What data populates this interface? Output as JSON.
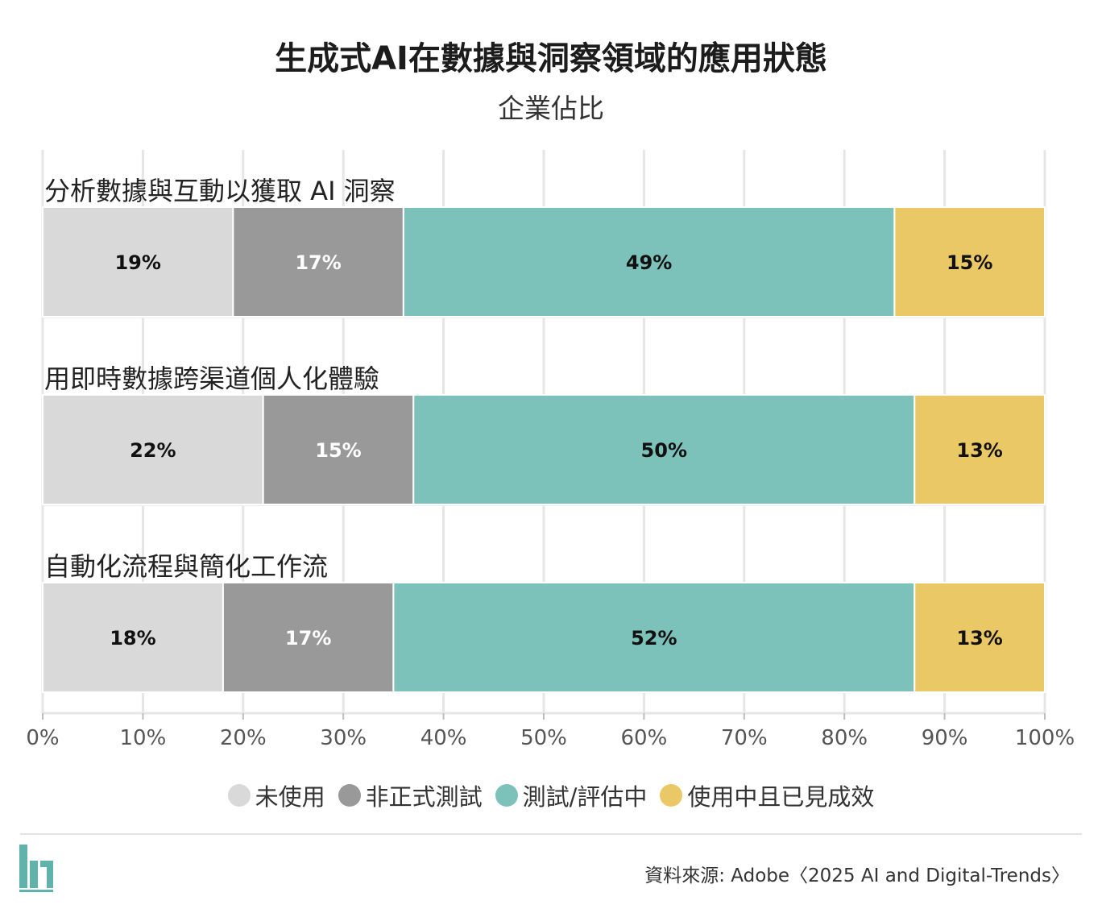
{
  "title": "生成式AI在數據與洞察領域的應用狀態",
  "subtitle": "企業佔比",
  "source": "資料來源: Adobe〈2025 AI and Digital-Trends〉",
  "colors": {
    "not_used": "#d9d9d9",
    "informal": "#999999",
    "testing": "#7dc2ba",
    "in_use": "#ebc866",
    "logo": "#5fb3ab"
  },
  "chart_data": {
    "type": "bar",
    "orientation": "horizontal",
    "stacked": true,
    "title": "生成式AI在數據與洞察領域的應用狀態",
    "subtitle": "企業佔比",
    "categories": [
      "分析數據與互動以獲取 AI 洞察",
      "用即時數據跨渠道個人化體驗",
      "自動化流程與簡化工作流"
    ],
    "series": [
      {
        "name": "未使用",
        "values": [
          19,
          22,
          18
        ],
        "color": "#d9d9d9",
        "label_color": "#111111",
        "labels": [
          "19%",
          "22%",
          "18%"
        ]
      },
      {
        "name": "非正式測試",
        "values": [
          17,
          15,
          17
        ],
        "color": "#999999",
        "label_color": "#ffffff",
        "labels": [
          "17%",
          "15%",
          "17%"
        ]
      },
      {
        "name": "測試/評估中",
        "values": [
          49,
          50,
          52
        ],
        "color": "#7dc2ba",
        "label_color": "#111111",
        "labels": [
          "49%",
          "50%",
          "52%"
        ]
      },
      {
        "name": "使用中且已見成效",
        "values": [
          15,
          13,
          13
        ],
        "color": "#ebc866",
        "label_color": "#111111",
        "labels": [
          "15%",
          "13%",
          "13%"
        ]
      }
    ],
    "xlim": [
      0,
      100
    ],
    "xticks": [
      0,
      10,
      20,
      30,
      40,
      50,
      60,
      70,
      80,
      90,
      100
    ],
    "xtick_labels": [
      "0%",
      "10%",
      "20%",
      "30%",
      "40%",
      "50%",
      "60%",
      "70%",
      "80%",
      "90%",
      "100%"
    ],
    "grid": true,
    "legend_position": "bottom"
  }
}
